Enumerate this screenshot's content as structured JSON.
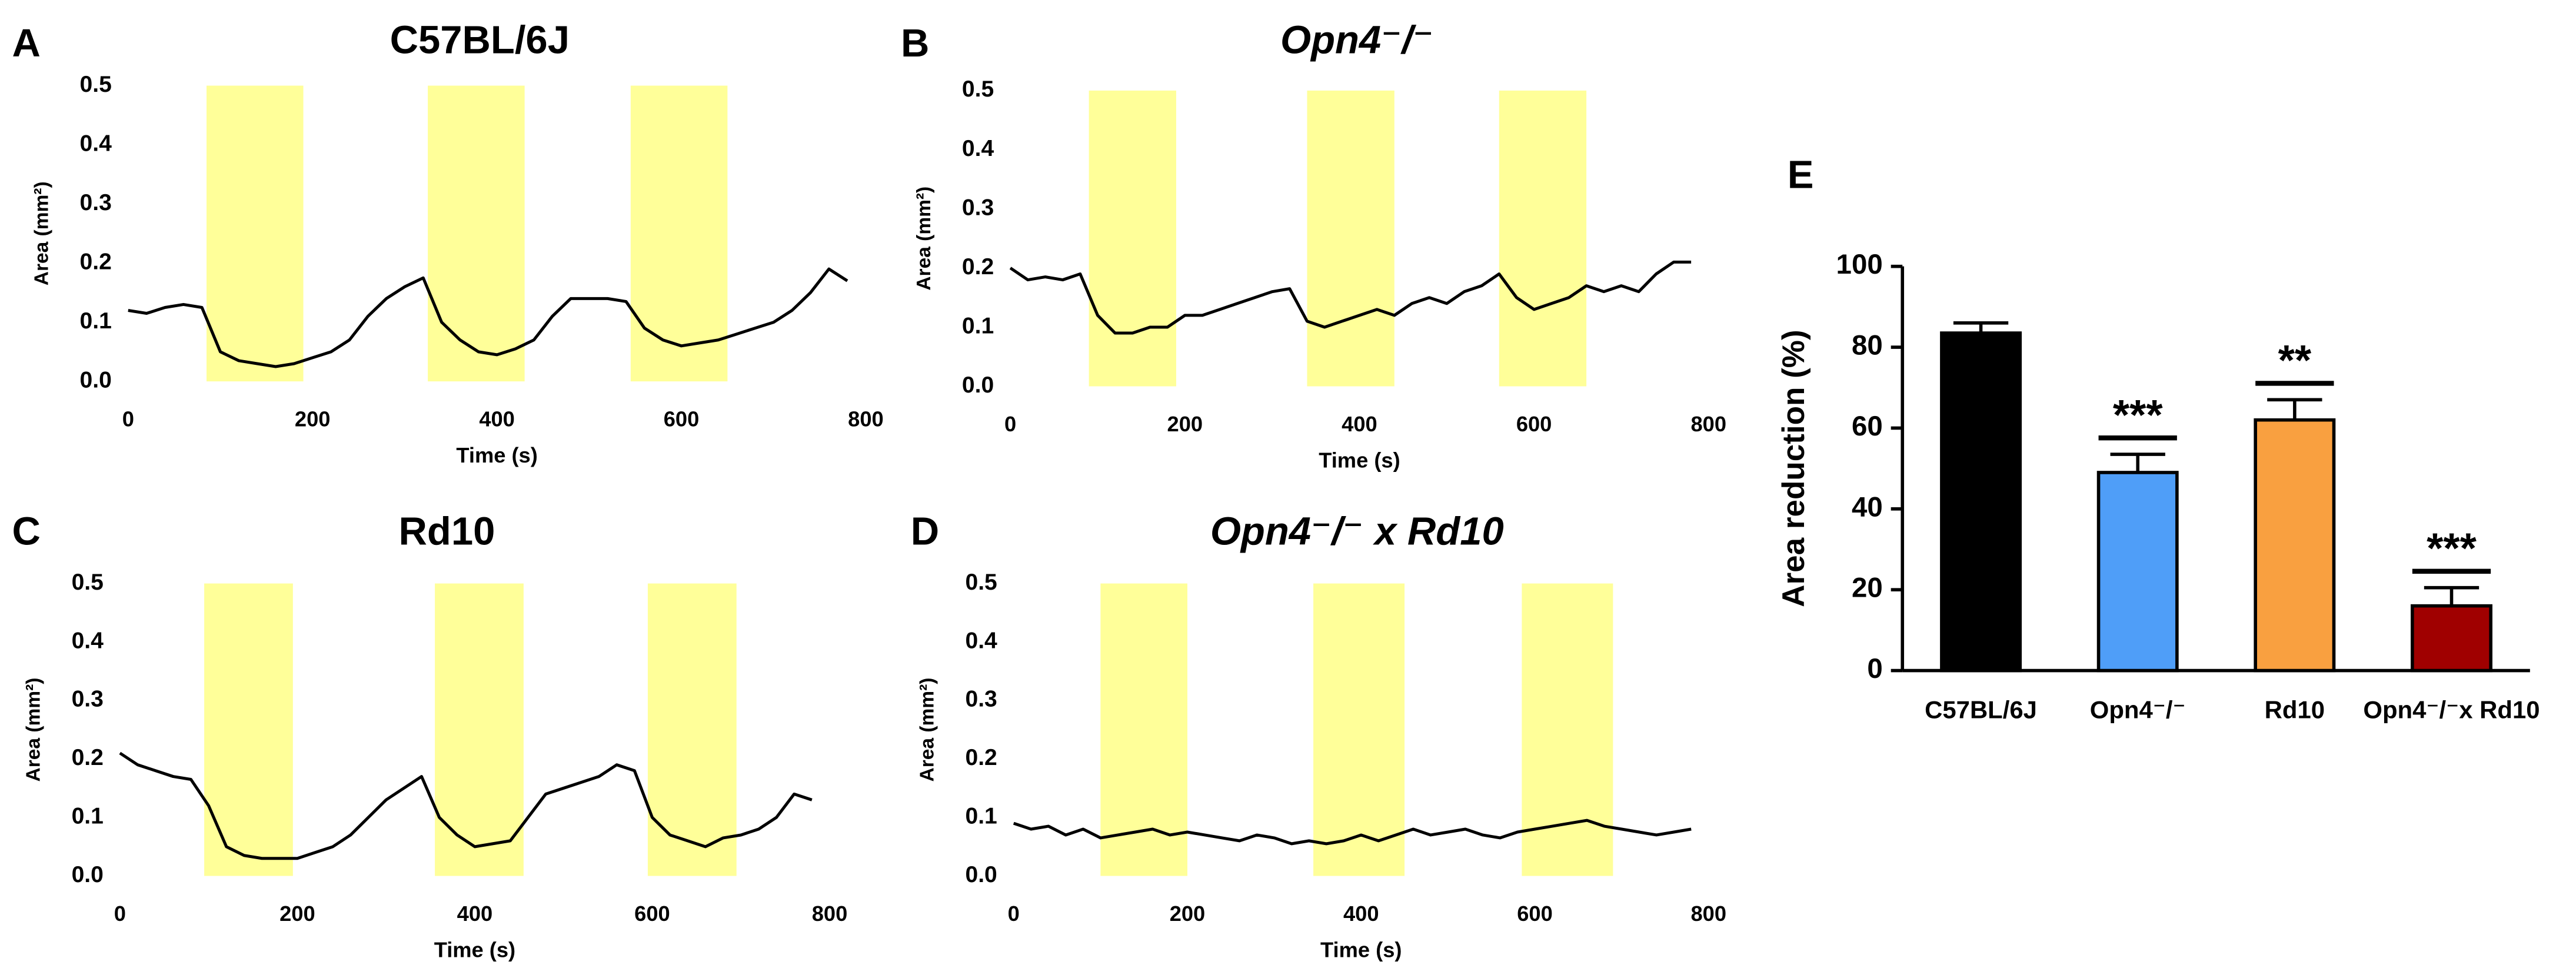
{
  "chart_data": [
    {
      "type": "line",
      "panel_label": "A",
      "title": "C57BL/6J",
      "title_italic": false,
      "xlabel": "Time (s)",
      "ylabel": "Area (mm²)",
      "x": [
        0,
        20,
        40,
        60,
        80,
        100,
        120,
        140,
        160,
        180,
        200,
        220,
        240,
        260,
        280,
        300,
        320,
        340,
        360,
        380,
        400,
        420,
        440,
        460,
        480,
        500,
        520,
        540,
        560,
        580,
        600,
        620,
        640,
        660,
        680,
        700,
        720,
        740,
        760,
        780
      ],
      "series": [
        {
          "color": "#000000",
          "values": [
            0.12,
            0.115,
            0.125,
            0.13,
            0.125,
            0.05,
            0.035,
            0.03,
            0.025,
            0.03,
            0.04,
            0.05,
            0.07,
            0.11,
            0.14,
            0.16,
            0.175,
            0.1,
            0.07,
            0.05,
            0.045,
            0.055,
            0.07,
            0.11,
            0.14,
            0.14,
            0.14,
            0.135,
            0.09,
            0.07,
            0.06,
            0.065,
            0.07,
            0.08,
            0.09,
            0.1,
            0.12,
            0.15,
            0.19,
            0.17
          ]
        }
      ],
      "shaded": [
        [
          85,
          190
        ],
        [
          325,
          430
        ],
        [
          545,
          650
        ]
      ],
      "shade_color": "#ffff99",
      "xlim": [
        0,
        800
      ],
      "xticks": [
        0,
        200,
        400,
        600,
        800
      ],
      "ylim": [
        0,
        0.5
      ],
      "yticks": [
        {
          "value": 0,
          "label": "0.0"
        },
        0.1,
        0.2,
        0.3,
        0.4,
        0.5
      ]
    },
    {
      "type": "line",
      "panel_label": "B",
      "title": "Opn4⁻/⁻",
      "title_italic": true,
      "xlabel": "Time (s)",
      "ylabel": "Area (mm²)",
      "x": [
        0,
        20,
        40,
        60,
        80,
        100,
        120,
        140,
        160,
        180,
        200,
        220,
        240,
        260,
        280,
        300,
        320,
        340,
        360,
        380,
        400,
        420,
        440,
        460,
        480,
        500,
        520,
        540,
        560,
        580,
        600,
        620,
        640,
        660,
        680,
        700,
        720,
        740,
        760,
        780
      ],
      "series": [
        {
          "color": "#000000",
          "values": [
            0.2,
            0.18,
            0.185,
            0.18,
            0.19,
            0.12,
            0.09,
            0.09,
            0.1,
            0.1,
            0.12,
            0.12,
            0.13,
            0.14,
            0.15,
            0.16,
            0.165,
            0.11,
            0.1,
            0.11,
            0.12,
            0.13,
            0.12,
            0.14,
            0.15,
            0.14,
            0.16,
            0.17,
            0.19,
            0.15,
            0.13,
            0.14,
            0.15,
            0.17,
            0.16,
            0.17,
            0.16,
            0.19,
            0.21,
            0.21
          ]
        }
      ],
      "shaded": [
        [
          90,
          190
        ],
        [
          340,
          440
        ],
        [
          560,
          660
        ]
      ],
      "shade_color": "#ffff99",
      "xlim": [
        0,
        800
      ],
      "xticks": [
        0,
        200,
        400,
        600,
        800
      ],
      "ylim": [
        0,
        0.5
      ],
      "yticks": [
        {
          "value": 0,
          "label": "0.0"
        },
        0.1,
        0.2,
        0.3,
        0.4,
        0.5
      ]
    },
    {
      "type": "line",
      "panel_label": "C",
      "title": "Rd10",
      "title_italic": false,
      "xlabel": "Time (s)",
      "ylabel": "Area (mm²)",
      "x": [
        0,
        20,
        40,
        60,
        80,
        100,
        120,
        140,
        160,
        180,
        200,
        220,
        240,
        260,
        280,
        300,
        320,
        340,
        360,
        380,
        400,
        420,
        440,
        460,
        480,
        500,
        520,
        540,
        560,
        580,
        600,
        620,
        640,
        660,
        680,
        700,
        720,
        740,
        760,
        780
      ],
      "series": [
        {
          "color": "#000000",
          "values": [
            0.21,
            0.19,
            0.18,
            0.17,
            0.165,
            0.12,
            0.05,
            0.035,
            0.03,
            0.03,
            0.03,
            0.04,
            0.05,
            0.07,
            0.1,
            0.13,
            0.15,
            0.17,
            0.1,
            0.07,
            0.05,
            0.055,
            0.06,
            0.1,
            0.14,
            0.15,
            0.16,
            0.17,
            0.19,
            0.18,
            0.1,
            0.07,
            0.06,
            0.05,
            0.065,
            0.07,
            0.08,
            0.1,
            0.14,
            0.13
          ]
        }
      ],
      "shaded": [
        [
          95,
          195
        ],
        [
          355,
          455
        ],
        [
          595,
          695
        ]
      ],
      "shade_color": "#ffff99",
      "xlim": [
        0,
        800
      ],
      "xticks": [
        0,
        200,
        400,
        600,
        800
      ],
      "ylim": [
        0,
        0.5
      ],
      "yticks": [
        {
          "value": 0,
          "label": "0.0"
        },
        0.1,
        0.2,
        0.3,
        0.4,
        0.5
      ]
    },
    {
      "type": "line",
      "panel_label": "D",
      "title": "Opn4⁻/⁻ x Rd10",
      "title_italic": true,
      "xlabel": "Time (s)",
      "ylabel": "Area (mm²)",
      "x": [
        0,
        20,
        40,
        60,
        80,
        100,
        120,
        140,
        160,
        180,
        200,
        220,
        240,
        260,
        280,
        300,
        320,
        340,
        360,
        380,
        400,
        420,
        440,
        460,
        480,
        500,
        520,
        540,
        560,
        580,
        600,
        620,
        640,
        660,
        680,
        700,
        720,
        740,
        760,
        780
      ],
      "series": [
        {
          "color": "#000000",
          "values": [
            0.09,
            0.08,
            0.085,
            0.07,
            0.08,
            0.065,
            0.07,
            0.075,
            0.08,
            0.07,
            0.075,
            0.07,
            0.065,
            0.06,
            0.07,
            0.065,
            0.055,
            0.06,
            0.055,
            0.06,
            0.07,
            0.06,
            0.07,
            0.08,
            0.07,
            0.075,
            0.08,
            0.07,
            0.065,
            0.075,
            0.08,
            0.085,
            0.09,
            0.095,
            0.085,
            0.08,
            0.075,
            0.07,
            0.075,
            0.08
          ]
        }
      ],
      "shaded": [
        [
          100,
          200
        ],
        [
          345,
          450
        ],
        [
          585,
          690
        ]
      ],
      "shade_color": "#ffff99",
      "xlim": [
        0,
        800
      ],
      "xticks": [
        0,
        200,
        400,
        600,
        800
      ],
      "ylim": [
        0,
        0.5
      ],
      "yticks": [
        {
          "value": 0,
          "label": "0.0"
        },
        0.1,
        0.2,
        0.3,
        0.4,
        0.5
      ]
    },
    {
      "type": "bar",
      "panel_label": "E",
      "ylabel": "Area reduction (%)",
      "categories": [
        "C57BL/6J",
        "Opn4⁻/⁻",
        "Rd10",
        "Opn4⁻/⁻x Rd10"
      ],
      "values": [
        83.5,
        49,
        62,
        16
      ],
      "errors": [
        2.5,
        4.5,
        5,
        4.5
      ],
      "colors": [
        "#000000",
        "#4f9ef8",
        "#f9a040",
        "#a00000"
      ],
      "significance": [
        null,
        "***",
        "**",
        "***"
      ],
      "ylim": [
        0,
        100
      ],
      "yticks": [
        0,
        20,
        40,
        60,
        80,
        100
      ]
    }
  ]
}
